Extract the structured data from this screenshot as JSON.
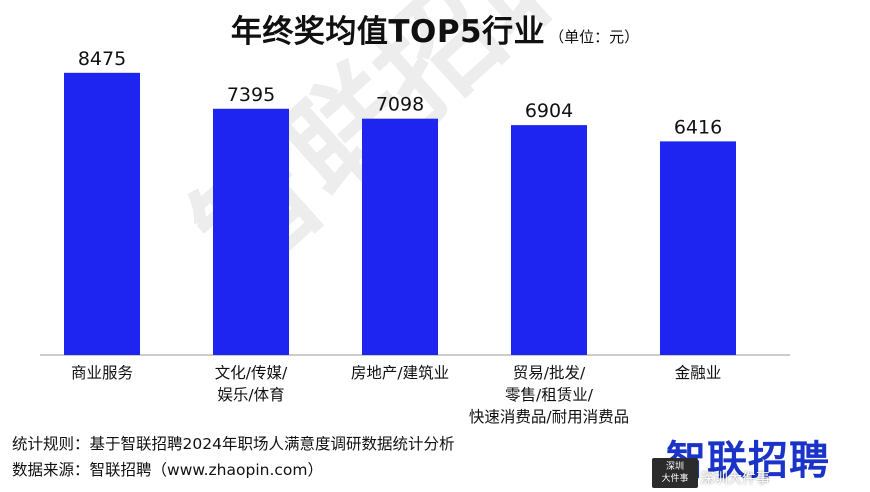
{
  "chart_data": {
    "type": "bar",
    "title": "年终奖均值TOP5行业",
    "unit_label": "（单位：元）",
    "categories": [
      [
        "商业服务"
      ],
      [
        "文化/传媒/",
        "娱乐/体育"
      ],
      [
        "房地产/建筑业"
      ],
      [
        "贸易/批发/",
        "零售/租赁业/",
        "快速消费品/耐用消费品"
      ],
      [
        "金融业"
      ]
    ],
    "values": [
      8475,
      7395,
      7098,
      6904,
      6416
    ],
    "value_labels": [
      "8475",
      "7395",
      "7098",
      "6904",
      "6416"
    ],
    "ylim": [
      0,
      8800
    ],
    "grid": false,
    "bar_color": "#1f25f0"
  },
  "watermark": "智联招聘",
  "footer": {
    "rule_label": "统计规则：",
    "rule_text": "基于智联招聘2024年职场人满意度调研数据统计分析",
    "source_label": "数据来源：",
    "source_text": "智联招聘（www.zhaopin.com）"
  },
  "brand_logo": "智联招聘",
  "badge_text": [
    "深圳",
    "大件事"
  ],
  "source_tag": "深圳大件事",
  "colors": {
    "brand_blue": "#1a34c9",
    "bar_blue": "#1f25f0"
  }
}
